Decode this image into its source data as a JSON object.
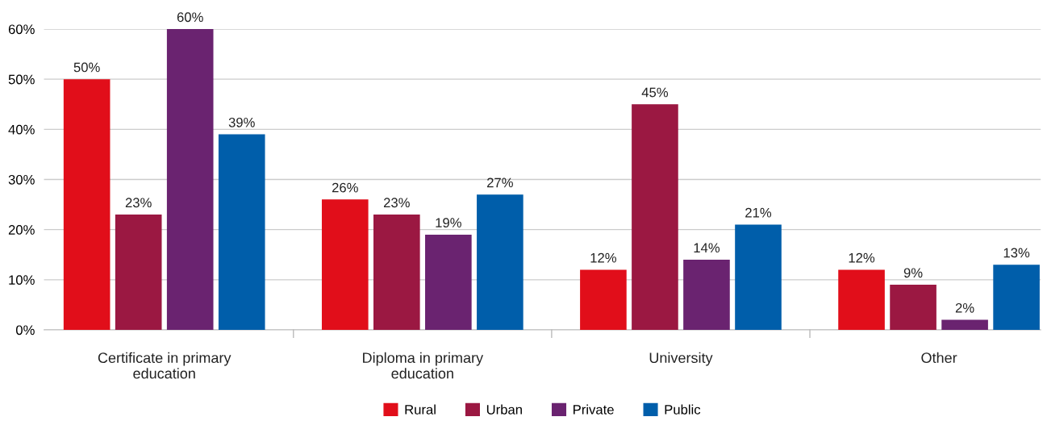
{
  "chart_data": {
    "type": "bar",
    "categories": [
      "Certificate in primary\neducation",
      "Diploma in primary\neducation",
      "University",
      "Other"
    ],
    "series": [
      {
        "name": "Rural",
        "color": "#e10e1a",
        "values": [
          50,
          26,
          12,
          12
        ],
        "value_labels": [
          "50%",
          "26%",
          "12%",
          "12%"
        ]
      },
      {
        "name": "Urban",
        "color": "#9b1842",
        "values": [
          23,
          23,
          45,
          9
        ],
        "value_labels": [
          "23%",
          "23%",
          "45%",
          "9%"
        ]
      },
      {
        "name": "Private",
        "color": "#6a2370",
        "values": [
          60,
          19,
          14,
          2
        ],
        "value_labels": [
          "60%",
          "19%",
          "14%",
          "2%"
        ]
      },
      {
        "name": "Public",
        "color": "#005eaa",
        "values": [
          39,
          27,
          21,
          13
        ],
        "value_labels": [
          "39%",
          "27%",
          "21%",
          "13%"
        ]
      }
    ],
    "ylim": [
      0,
      60
    ],
    "yticks": [
      {
        "value": 0,
        "label": "0%"
      },
      {
        "value": 10,
        "label": "10%"
      },
      {
        "value": 20,
        "label": "20%"
      },
      {
        "value": 30,
        "label": "30%"
      },
      {
        "value": 40,
        "label": "40%"
      },
      {
        "value": 50,
        "label": "50%"
      },
      {
        "value": 60,
        "label": "60%"
      }
    ],
    "grid": "y",
    "legend": "bottom"
  }
}
